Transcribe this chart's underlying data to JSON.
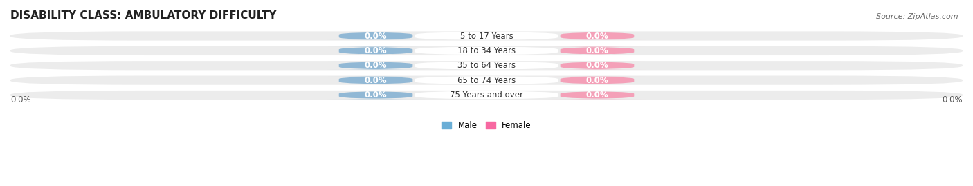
{
  "title": "DISABILITY CLASS: AMBULATORY DIFFICULTY",
  "source": "Source: ZipAtlas.com",
  "categories": [
    "5 to 17 Years",
    "18 to 34 Years",
    "35 to 64 Years",
    "65 to 74 Years",
    "75 Years and over"
  ],
  "male_values": [
    0.0,
    0.0,
    0.0,
    0.0,
    0.0
  ],
  "female_values": [
    0.0,
    0.0,
    0.0,
    0.0,
    0.0
  ],
  "male_color": "#91b8d5",
  "female_color": "#f4a0b8",
  "male_legend_color": "#6aaed6",
  "female_legend_color": "#f768a1",
  "row_bg_color": "#ececec",
  "center_label_bg": "#ffffff",
  "title_fontsize": 11,
  "label_fontsize": 8.5,
  "tick_fontsize": 8.5,
  "source_fontsize": 8,
  "background_color": "#ffffff",
  "left_label": "0.0%",
  "right_label": "0.0%"
}
